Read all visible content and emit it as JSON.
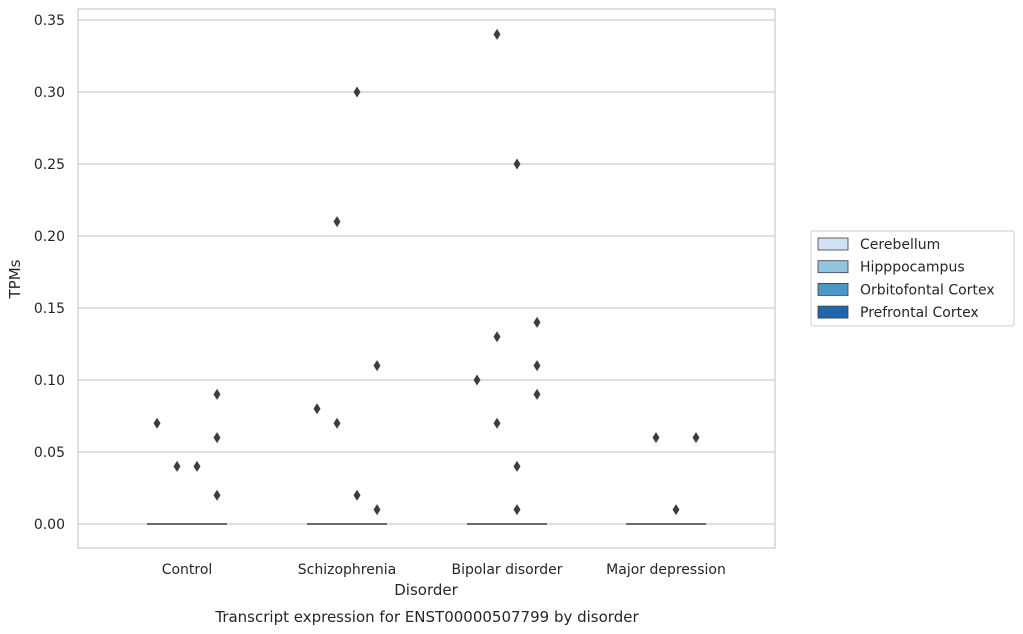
{
  "chart_data": {
    "type": "boxplot",
    "title": "Transcript expression for ENST00000507799 by disorder",
    "xlabel": "Disorder",
    "ylabel": "TPMs",
    "ylim": [
      -0.017,
      0.358
    ],
    "yticks": [
      0.0,
      0.05,
      0.1,
      0.15,
      0.2,
      0.25,
      0.3,
      0.35
    ],
    "ytick_labels": [
      "0.00",
      "0.05",
      "0.10",
      "0.15",
      "0.20",
      "0.25",
      "0.30",
      "0.35"
    ],
    "categories": [
      "Control",
      "Schizophrenia",
      "Bipolar disorder",
      "Major depression"
    ],
    "grid": "horizontal",
    "legend_position": "right",
    "series": [
      {
        "name": "Cerebellum",
        "color": "#cfe1f2",
        "medians": [
          0,
          0,
          0,
          0
        ],
        "outliers": [
          [
            0.07
          ],
          [
            0.08
          ],
          [
            0.1
          ],
          []
        ]
      },
      {
        "name": "Hipppocampus",
        "color": "#93c4de",
        "medians": [
          0,
          0,
          0,
          0
        ],
        "outliers": [
          [
            0.04
          ],
          [
            0.07,
            0.21
          ],
          [
            0.13,
            0.07,
            0.34
          ],
          [
            0.06
          ]
        ]
      },
      {
        "name": "Orbitofontal Cortex",
        "color": "#4a98c9",
        "medians": [
          0,
          0,
          0,
          0
        ],
        "outliers": [
          [
            0.04
          ],
          [
            0.02,
            0.3
          ],
          [
            0.04,
            0.01,
            0.25
          ],
          [
            0.01
          ]
        ]
      },
      {
        "name": "Prefrontal Cortex",
        "color": "#2166ac",
        "medians": [
          0,
          0,
          0,
          0
        ],
        "outliers": [
          [
            0.02,
            0.06,
            0.09
          ],
          [
            0.01,
            0.11
          ],
          [
            0.09,
            0.11,
            0.14
          ],
          [
            0.06
          ]
        ]
      }
    ]
  }
}
